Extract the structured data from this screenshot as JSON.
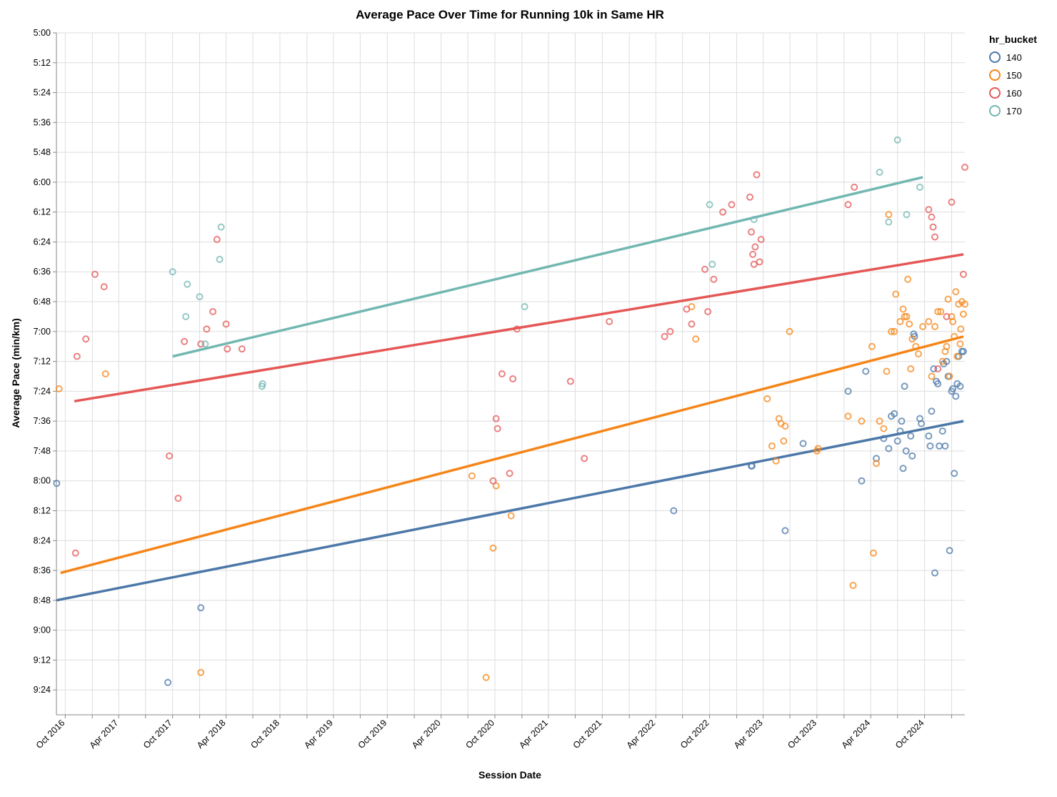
{
  "chart_data": {
    "type": "scatter",
    "title": "Average Pace Over Time for Running 10k in Same HR",
    "xlabel": "Session Date",
    "ylabel": "Average Pace (min/km)",
    "x_ticks": [
      "Oct 2016",
      "Apr 2017",
      "Oct 2017",
      "Apr 2018",
      "Oct 2018",
      "Apr 2019",
      "Oct 2019",
      "Apr 2020",
      "Oct 2020",
      "Apr 2021",
      "Oct 2021",
      "Apr 2022",
      "Oct 2022",
      "Apr 2023",
      "Oct 2023",
      "Apr 2024",
      "Oct 2024"
    ],
    "x_tick_dates": [
      "2016-10-01",
      "2017-04-01",
      "2017-10-01",
      "2018-04-01",
      "2018-10-01",
      "2019-04-01",
      "2019-10-01",
      "2020-04-01",
      "2020-10-01",
      "2021-04-01",
      "2021-10-01",
      "2022-04-01",
      "2022-10-01",
      "2023-04-01",
      "2023-10-01",
      "2024-04-01",
      "2024-10-01"
    ],
    "xlim": [
      "2016-09-01",
      "2025-02-15"
    ],
    "y_ticks": [
      "5:00",
      "5:12",
      "5:24",
      "5:36",
      "5:48",
      "6:00",
      "6:12",
      "6:24",
      "6:36",
      "6:48",
      "7:00",
      "7:12",
      "7:24",
      "7:36",
      "7:48",
      "8:00",
      "8:12",
      "8:24",
      "8:36",
      "8:48",
      "9:00",
      "9:12",
      "9:24"
    ],
    "ylim_seconds": [
      300,
      574
    ],
    "y_unit": "seconds per km",
    "grid": true,
    "legend": {
      "title": "hr_bucket",
      "placement": "top-right"
    },
    "series": [
      {
        "name": "140",
        "color": "#4c78a8",
        "trend": {
          "start": [
            "2016-09-01",
            528
          ],
          "end": [
            "2025-02-10",
            456
          ]
        },
        "points": [
          [
            "2016-09-02",
            481
          ],
          [
            "2017-09-15",
            561
          ],
          [
            "2018-01-05",
            531
          ],
          [
            "2022-06-01",
            492
          ],
          [
            "2023-02-20",
            474
          ],
          [
            "2023-02-22",
            474
          ],
          [
            "2023-06-15",
            500
          ],
          [
            "2023-08-15",
            465
          ],
          [
            "2024-01-15",
            444
          ],
          [
            "2024-03-01",
            480
          ],
          [
            "2024-03-15",
            436
          ],
          [
            "2024-04-20",
            471
          ],
          [
            "2024-05-15",
            463
          ],
          [
            "2024-06-01",
            467
          ],
          [
            "2024-06-10",
            454
          ],
          [
            "2024-06-20",
            453
          ],
          [
            "2024-07-01",
            464
          ],
          [
            "2024-07-10",
            460
          ],
          [
            "2024-07-15",
            456
          ],
          [
            "2024-07-20",
            475
          ],
          [
            "2024-07-25",
            442
          ],
          [
            "2024-07-30",
            468
          ],
          [
            "2024-08-15",
            462
          ],
          [
            "2024-08-20",
            470
          ],
          [
            "2024-08-25",
            421
          ],
          [
            "2024-08-28",
            422
          ],
          [
            "2024-09-15",
            455
          ],
          [
            "2024-09-20",
            457
          ],
          [
            "2024-10-15",
            462
          ],
          [
            "2024-10-20",
            466
          ],
          [
            "2024-10-25",
            452
          ],
          [
            "2024-11-01",
            435
          ],
          [
            "2024-11-05",
            517
          ],
          [
            "2024-11-10",
            440
          ],
          [
            "2024-11-15",
            441
          ],
          [
            "2024-11-20",
            466
          ],
          [
            "2024-12-01",
            460
          ],
          [
            "2024-12-05",
            433
          ],
          [
            "2024-12-10",
            466
          ],
          [
            "2024-12-15",
            432
          ],
          [
            "2024-12-20",
            438
          ],
          [
            "2024-12-25",
            508
          ],
          [
            "2025-01-01",
            444
          ],
          [
            "2025-01-05",
            443
          ],
          [
            "2025-01-10",
            477
          ],
          [
            "2025-01-15",
            446
          ],
          [
            "2025-01-20",
            441
          ],
          [
            "2025-01-25",
            430
          ],
          [
            "2025-01-30",
            442
          ],
          [
            "2025-02-05",
            428
          ],
          [
            "2025-02-10",
            428
          ]
        ]
      },
      {
        "name": "150",
        "color": "#f58518",
        "trend": {
          "start": [
            "2016-09-15",
            517
          ],
          "end": [
            "2025-02-10",
            422
          ]
        },
        "points": [
          [
            "2016-09-10",
            443
          ],
          [
            "2017-02-15",
            437
          ],
          [
            "2018-01-05",
            557
          ],
          [
            "2020-07-15",
            478
          ],
          [
            "2020-09-01",
            559
          ],
          [
            "2020-09-25",
            507
          ],
          [
            "2020-10-05",
            482
          ],
          [
            "2020-11-25",
            494
          ],
          [
            "2022-08-01",
            410
          ],
          [
            "2022-08-15",
            423
          ],
          [
            "2023-04-15",
            447
          ],
          [
            "2023-05-01",
            466
          ],
          [
            "2023-05-15",
            472
          ],
          [
            "2023-05-25",
            455
          ],
          [
            "2023-06-01",
            457
          ],
          [
            "2023-06-10",
            464
          ],
          [
            "2023-06-15",
            458
          ],
          [
            "2023-06-30",
            420
          ],
          [
            "2023-10-01",
            468
          ],
          [
            "2023-10-05",
            467
          ],
          [
            "2024-01-15",
            454
          ],
          [
            "2024-02-01",
            522
          ],
          [
            "2024-03-01",
            456
          ],
          [
            "2024-04-05",
            426
          ],
          [
            "2024-04-10",
            509
          ],
          [
            "2024-04-20",
            473
          ],
          [
            "2024-05-01",
            456
          ],
          [
            "2024-05-15",
            459
          ],
          [
            "2024-05-25",
            436
          ],
          [
            "2024-06-01",
            373
          ],
          [
            "2024-06-10",
            420
          ],
          [
            "2024-06-20",
            420
          ],
          [
            "2024-06-25",
            405
          ],
          [
            "2024-07-10",
            416
          ],
          [
            "2024-07-20",
            411
          ],
          [
            "2024-07-25",
            414
          ],
          [
            "2024-08-01",
            414
          ],
          [
            "2024-08-05",
            399
          ],
          [
            "2024-08-10",
            417
          ],
          [
            "2024-08-15",
            435
          ],
          [
            "2024-08-20",
            423
          ],
          [
            "2024-09-01",
            426
          ],
          [
            "2024-09-10",
            429
          ],
          [
            "2024-09-25",
            418
          ],
          [
            "2024-10-15",
            416
          ],
          [
            "2024-10-25",
            438
          ],
          [
            "2024-11-05",
            418
          ],
          [
            "2024-11-15",
            412
          ],
          [
            "2024-11-25",
            412
          ],
          [
            "2024-12-01",
            432
          ],
          [
            "2024-12-10",
            428
          ],
          [
            "2024-12-15",
            426
          ],
          [
            "2024-12-20",
            407
          ],
          [
            "2024-12-25",
            438
          ],
          [
            "2025-01-01",
            414
          ],
          [
            "2025-01-05",
            416
          ],
          [
            "2025-01-10",
            422
          ],
          [
            "2025-01-15",
            404
          ],
          [
            "2025-01-20",
            430
          ],
          [
            "2025-01-25",
            409
          ],
          [
            "2025-01-30",
            425
          ],
          [
            "2025-02-01",
            419
          ],
          [
            "2025-02-05",
            408
          ],
          [
            "2025-02-10",
            413
          ],
          [
            "2025-02-15",
            409
          ]
        ]
      },
      {
        "name": "160",
        "color": "#e45756",
        "trend": {
          "start": [
            "2016-11-01",
            448
          ],
          "end": [
            "2025-02-10",
            389
          ]
        },
        "points": [
          [
            "2016-11-05",
            509
          ],
          [
            "2016-11-10",
            430
          ],
          [
            "2016-12-10",
            423
          ],
          [
            "2017-01-10",
            397
          ],
          [
            "2017-02-10",
            402
          ],
          [
            "2017-09-20",
            470
          ],
          [
            "2017-10-20",
            487
          ],
          [
            "2017-11-10",
            424
          ],
          [
            "2018-01-05",
            425
          ],
          [
            "2018-01-25",
            419
          ],
          [
            "2018-02-15",
            412
          ],
          [
            "2018-03-01",
            383
          ],
          [
            "2018-04-01",
            417
          ],
          [
            "2018-04-05",
            427
          ],
          [
            "2018-05-25",
            427
          ],
          [
            "2020-09-25",
            480
          ],
          [
            "2020-10-05",
            455
          ],
          [
            "2020-10-10",
            459
          ],
          [
            "2020-10-25",
            437
          ],
          [
            "2020-11-20",
            477
          ],
          [
            "2020-12-01",
            439
          ],
          [
            "2020-12-15",
            419
          ],
          [
            "2021-06-15",
            440
          ],
          [
            "2021-08-01",
            471
          ],
          [
            "2021-10-25",
            416
          ],
          [
            "2022-05-01",
            422
          ],
          [
            "2022-05-20",
            420
          ],
          [
            "2022-07-15",
            411
          ],
          [
            "2022-08-01",
            417
          ],
          [
            "2022-09-15",
            395
          ],
          [
            "2022-09-25",
            412
          ],
          [
            "2022-10-15",
            399
          ],
          [
            "2022-11-15",
            372
          ],
          [
            "2022-12-15",
            369
          ],
          [
            "2023-02-15",
            366
          ],
          [
            "2023-02-20",
            380
          ],
          [
            "2023-02-25",
            389
          ],
          [
            "2023-03-01",
            393
          ],
          [
            "2023-03-05",
            386
          ],
          [
            "2023-03-10",
            357
          ],
          [
            "2023-03-20",
            392
          ],
          [
            "2023-03-25",
            383
          ],
          [
            "2024-01-15",
            369
          ],
          [
            "2024-02-05",
            362
          ],
          [
            "2024-10-15",
            371
          ],
          [
            "2024-10-25",
            374
          ],
          [
            "2024-10-30",
            378
          ],
          [
            "2024-11-05",
            382
          ],
          [
            "2024-11-15",
            435
          ],
          [
            "2024-12-15",
            414
          ],
          [
            "2025-01-01",
            368
          ],
          [
            "2025-02-10",
            397
          ],
          [
            "2025-02-15",
            354
          ]
        ]
      },
      {
        "name": "170",
        "color": "#72b7b2",
        "trend": {
          "start": [
            "2017-10-01",
            430
          ],
          "end": [
            "2024-09-25",
            358
          ]
        },
        "points": [
          [
            "2017-10-01",
            396
          ],
          [
            "2017-11-15",
            414
          ],
          [
            "2017-11-20",
            401
          ],
          [
            "2018-01-01",
            406
          ],
          [
            "2018-01-20",
            425
          ],
          [
            "2018-03-10",
            391
          ],
          [
            "2018-03-15",
            378
          ],
          [
            "2018-08-01",
            442
          ],
          [
            "2018-08-03",
            441
          ],
          [
            "2021-01-10",
            410
          ],
          [
            "2022-10-01",
            369
          ],
          [
            "2022-10-10",
            393
          ],
          [
            "2023-03-01",
            375
          ],
          [
            "2024-05-01",
            356
          ],
          [
            "2024-06-01",
            376
          ],
          [
            "2024-07-01",
            343
          ],
          [
            "2024-08-01",
            373
          ],
          [
            "2024-09-15",
            362
          ]
        ]
      }
    ]
  }
}
